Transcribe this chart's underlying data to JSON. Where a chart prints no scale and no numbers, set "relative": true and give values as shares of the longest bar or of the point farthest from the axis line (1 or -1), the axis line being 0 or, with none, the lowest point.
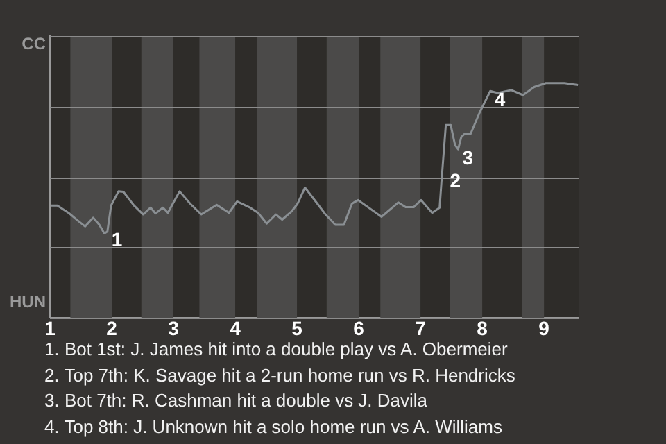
{
  "chart_data": {
    "type": "line",
    "x": [
      1.02,
      1.12,
      1.3,
      1.45,
      1.57,
      1.7,
      1.8,
      1.88,
      1.93,
      1.99,
      2.11,
      2.19,
      2.36,
      2.51,
      2.63,
      2.71,
      2.83,
      2.91,
      2.99,
      3.1,
      3.27,
      3.45,
      3.7,
      3.9,
      4.03,
      4.24,
      4.37,
      4.51,
      4.66,
      4.76,
      4.91,
      5.01,
      5.13,
      5.33,
      5.45,
      5.62,
      5.76,
      5.89,
      5.99,
      6.37,
      6.64,
      6.76,
      6.89,
      7.01,
      7.19,
      7.31,
      7.34,
      7.41,
      7.49,
      7.56,
      7.61,
      7.66,
      7.71,
      7.81,
      7.96,
      8.13,
      8.25,
      8.47,
      8.66,
      8.84,
      9.03,
      9.33,
      9.55
    ],
    "series": [
      {
        "color": "#8a8f93",
        "values": [
          0.479,
          0.479,
          0.448,
          0.415,
          0.39,
          0.427,
          0.397,
          0.36,
          0.368,
          0.479,
          0.539,
          0.537,
          0.479,
          0.441,
          0.47,
          0.445,
          0.47,
          0.448,
          0.487,
          0.539,
          0.487,
          0.441,
          0.482,
          0.448,
          0.496,
          0.47,
          0.448,
          0.402,
          0.441,
          0.419,
          0.453,
          0.487,
          0.555,
          0.487,
          0.445,
          0.397,
          0.397,
          0.487,
          0.502,
          0.431,
          0.492,
          0.472,
          0.472,
          0.502,
          0.448,
          0.47,
          0.581,
          0.821,
          0.821,
          0.736,
          0.718,
          0.77,
          0.783,
          0.783,
          0.876,
          0.966,
          0.958,
          0.97,
          0.949,
          0.983,
          1,
          1,
          0.992
        ]
      }
    ],
    "relative": true,
    "xlim": [
      1,
      9.56
    ],
    "xticks": [
      1,
      2,
      3,
      4,
      5,
      6,
      7,
      8,
      9
    ],
    "grid": "y",
    "marker": "none",
    "line_style": "solid",
    "legend": false,
    "bands": [
      {
        "axis": "x",
        "from": 1.33,
        "to": 2,
        "color": "#4b4a49"
      },
      {
        "axis": "x",
        "from": 2.48,
        "to": 3,
        "color": "#4b4a49"
      },
      {
        "axis": "x",
        "from": 3.42,
        "to": 4,
        "color": "#4b4a49"
      },
      {
        "axis": "x",
        "from": 4.35,
        "to": 5,
        "color": "#4b4a49"
      },
      {
        "axis": "x",
        "from": 5.48,
        "to": 6,
        "color": "#4b4a49"
      },
      {
        "axis": "x",
        "from": 6.35,
        "to": 7,
        "color": "#4b4a49"
      },
      {
        "axis": "x",
        "from": 7.48,
        "to": 8,
        "color": "#4b4a49"
      },
      {
        "axis": "x",
        "from": 8.64,
        "to": 9,
        "color": "#4b4a49"
      }
    ],
    "annotations": [
      "CC",
      "HUN",
      {
        "text": "1",
        "x": 1.93,
        "y": 0.368
      },
      {
        "text": "2",
        "x": 7.41,
        "y": 0.62
      },
      {
        "text": "3",
        "x": 7.61,
        "y": 0.718
      },
      {
        "text": "4",
        "x": 8.13,
        "y": 0.966
      },
      "1. Bot 1st: J. James hit into a double play vs A. Obermeier",
      "2. Top 7th: K. Savage hit a 2-run home run vs R. Hendricks",
      "3. Bot 7th: R. Cashman hit a double vs J. Davila",
      "4. Top 8th: J. Unknown hit a solo home run vs A. Williams"
    ]
  }
}
